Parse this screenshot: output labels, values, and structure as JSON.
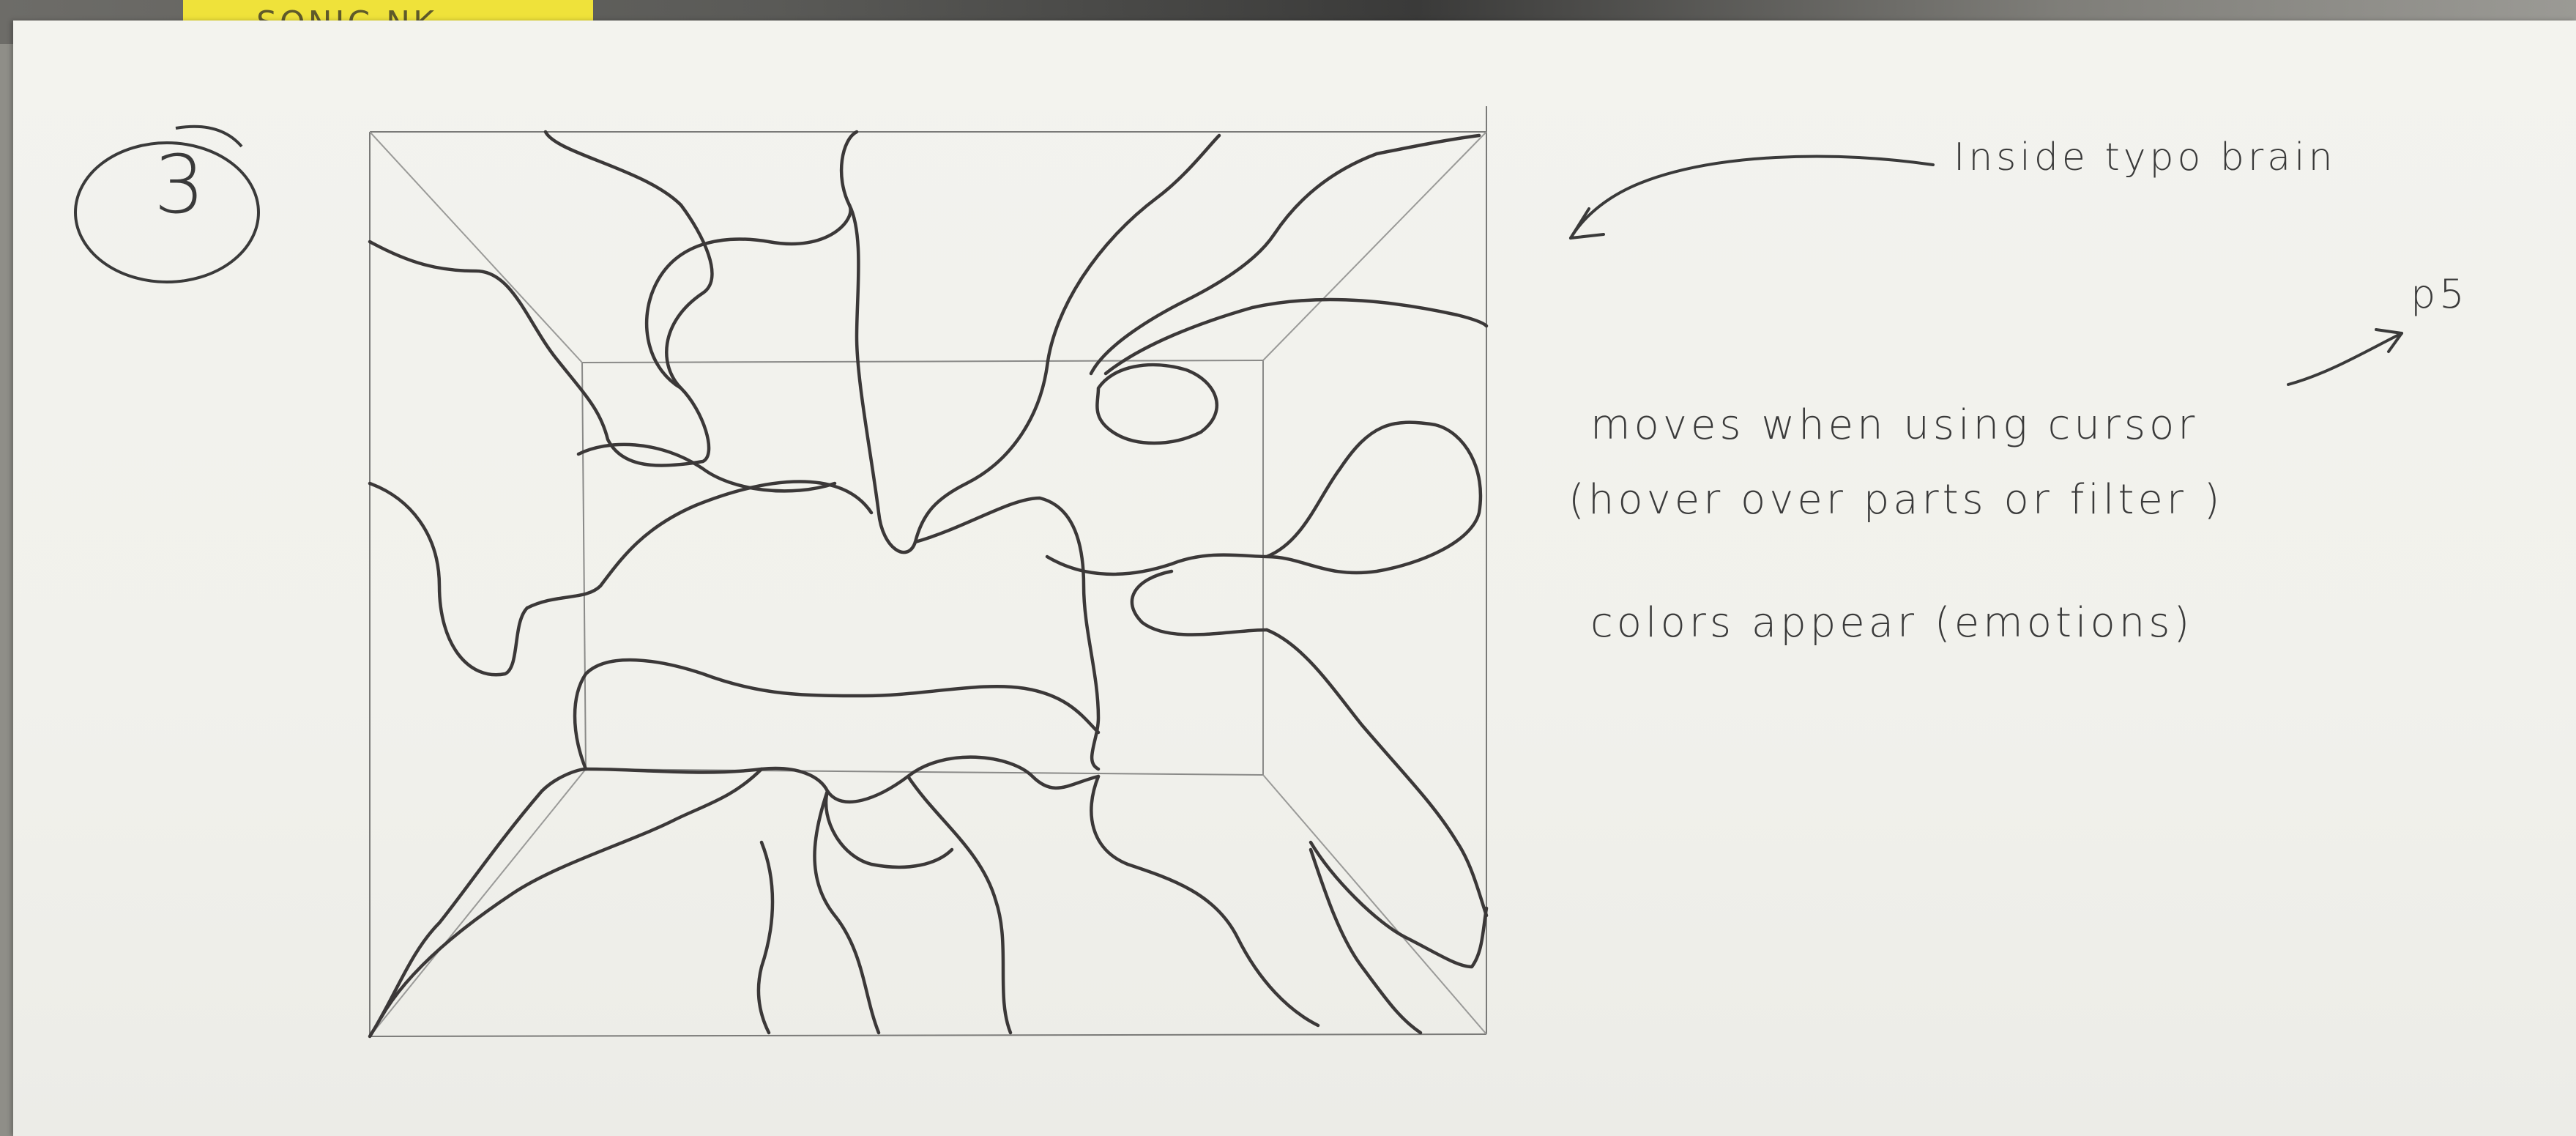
{
  "sketch": {
    "number_label": "3",
    "sticky_note_text": "SONIC NK"
  },
  "annotations": {
    "title_note": "Inside typo brain",
    "tech_note": "p5",
    "interaction_line1": "moves when using cursor",
    "interaction_line2": "(hover over parts or filter )",
    "colors_line": "colors appear (emotions)"
  },
  "colors": {
    "paper": "#f2f2ed",
    "pencil": "#3a3a3a",
    "sticky_note": "#efe23a"
  }
}
